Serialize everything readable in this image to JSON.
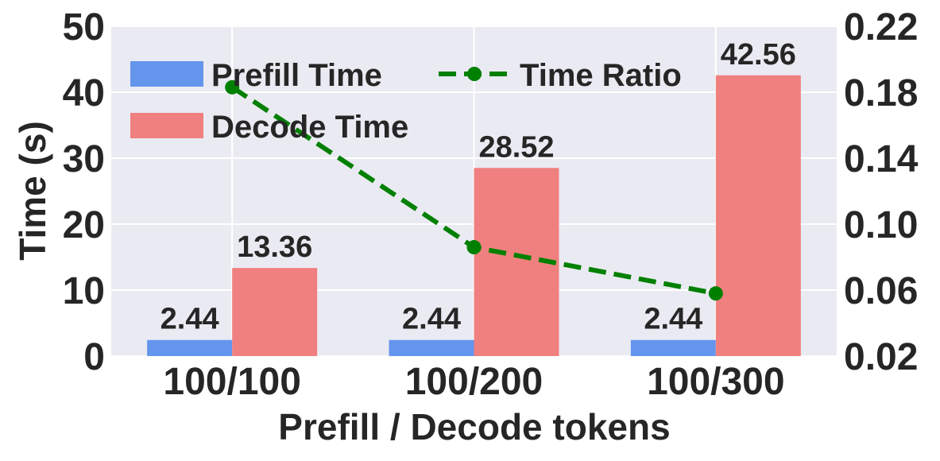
{
  "chart_data": {
    "type": "bar",
    "categories": [
      "100/100",
      "100/200",
      "100/300"
    ],
    "xlabel": "Prefill / Decode tokens",
    "ylabel": "Time (s)",
    "ylim": [
      0,
      50
    ],
    "yticks": [
      "0",
      "10",
      "20",
      "30",
      "40",
      "50"
    ],
    "y2lim": [
      0.02,
      0.22
    ],
    "y2ticks": [
      "0.02",
      "0.06",
      "0.10",
      "0.14",
      "0.18",
      "0.22"
    ],
    "grid": true,
    "legend_position": "top-left",
    "series": [
      {
        "name": "Prefill Time",
        "type": "bar",
        "axis": "left",
        "color": "#6495ED",
        "values": [
          2.44,
          2.44,
          2.44
        ],
        "labels": [
          "2.44",
          "2.44",
          "2.44"
        ]
      },
      {
        "name": "Decode Time",
        "type": "bar",
        "axis": "left",
        "color": "#F08080",
        "values": [
          13.36,
          28.52,
          42.56
        ],
        "labels": [
          "13.36",
          "28.52",
          "42.56"
        ]
      },
      {
        "name": "Time Ratio",
        "type": "line",
        "axis": "right",
        "color": "#008000",
        "style": "dashed",
        "marker": "circle",
        "values": [
          0.183,
          0.086,
          0.058
        ]
      }
    ]
  }
}
